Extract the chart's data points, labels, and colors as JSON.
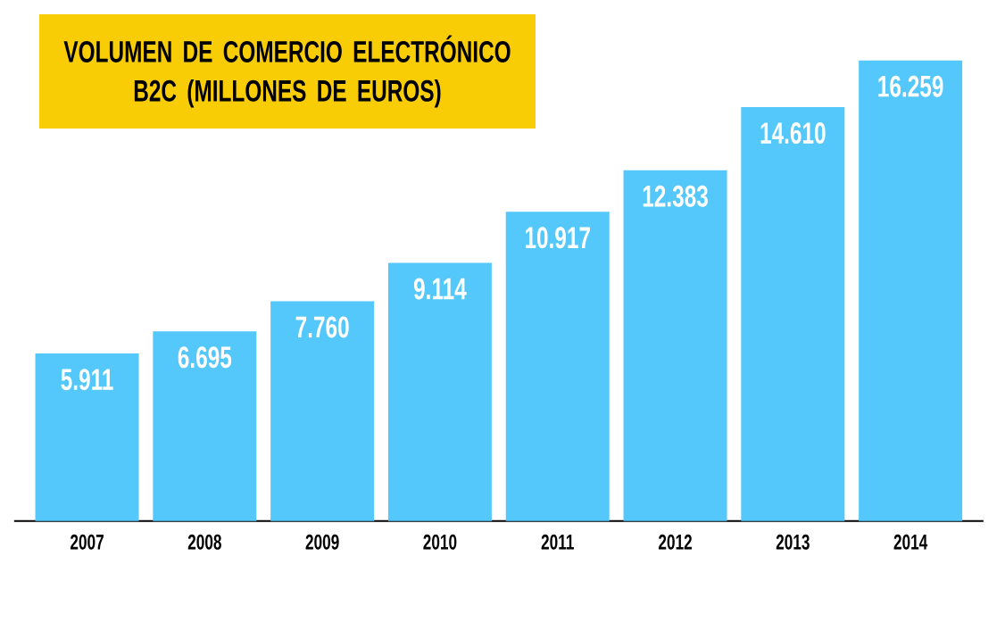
{
  "chart_data": {
    "type": "bar",
    "title": "VOLUMEN DE COMERCIO ELECTRÓNICO B2C (MILLONES DE EUROS)",
    "categories": [
      "2007",
      "2008",
      "2009",
      "2010",
      "2011",
      "2012",
      "2013",
      "2014"
    ],
    "values": [
      5911,
      6695,
      7760,
      9114,
      10917,
      12383,
      14610,
      16259
    ],
    "value_labels": [
      "5.911",
      "6.695",
      "7.760",
      "9.114",
      "10.917",
      "12.383",
      "14.610",
      "16.259"
    ],
    "color": "#55c8fb"
  }
}
